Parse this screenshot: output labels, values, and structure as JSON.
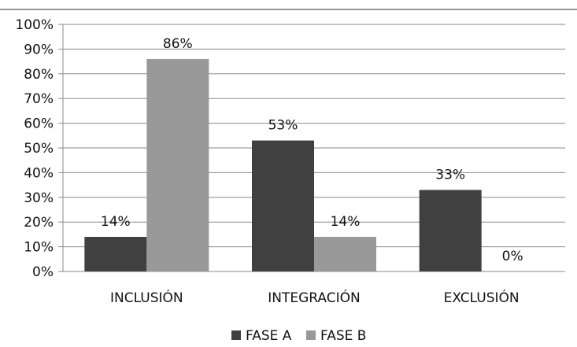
{
  "chart_data": {
    "type": "bar",
    "categories": [
      "INCLUSIÓN",
      "INTEGRACIÓN",
      "EXCLUSIÓN"
    ],
    "series": [
      {
        "name": "FASE A",
        "values": [
          14,
          53,
          33
        ],
        "labels": [
          "14%",
          "53%",
          "33%"
        ],
        "color": "#404040"
      },
      {
        "name": "FASE B",
        "values": [
          86,
          14,
          0
        ],
        "labels": [
          "86%",
          "14%",
          "0%"
        ],
        "color": "#999999"
      }
    ],
    "ylim": [
      0,
      100
    ],
    "yticks": [
      0,
      10,
      20,
      30,
      40,
      50,
      60,
      70,
      80,
      90,
      100
    ],
    "ytick_labels": [
      "0%",
      "10%",
      "20%",
      "30%",
      "40%",
      "50%",
      "60%",
      "70%",
      "80%",
      "90%",
      "100%"
    ],
    "grid": true,
    "legend": "bottom-center"
  }
}
